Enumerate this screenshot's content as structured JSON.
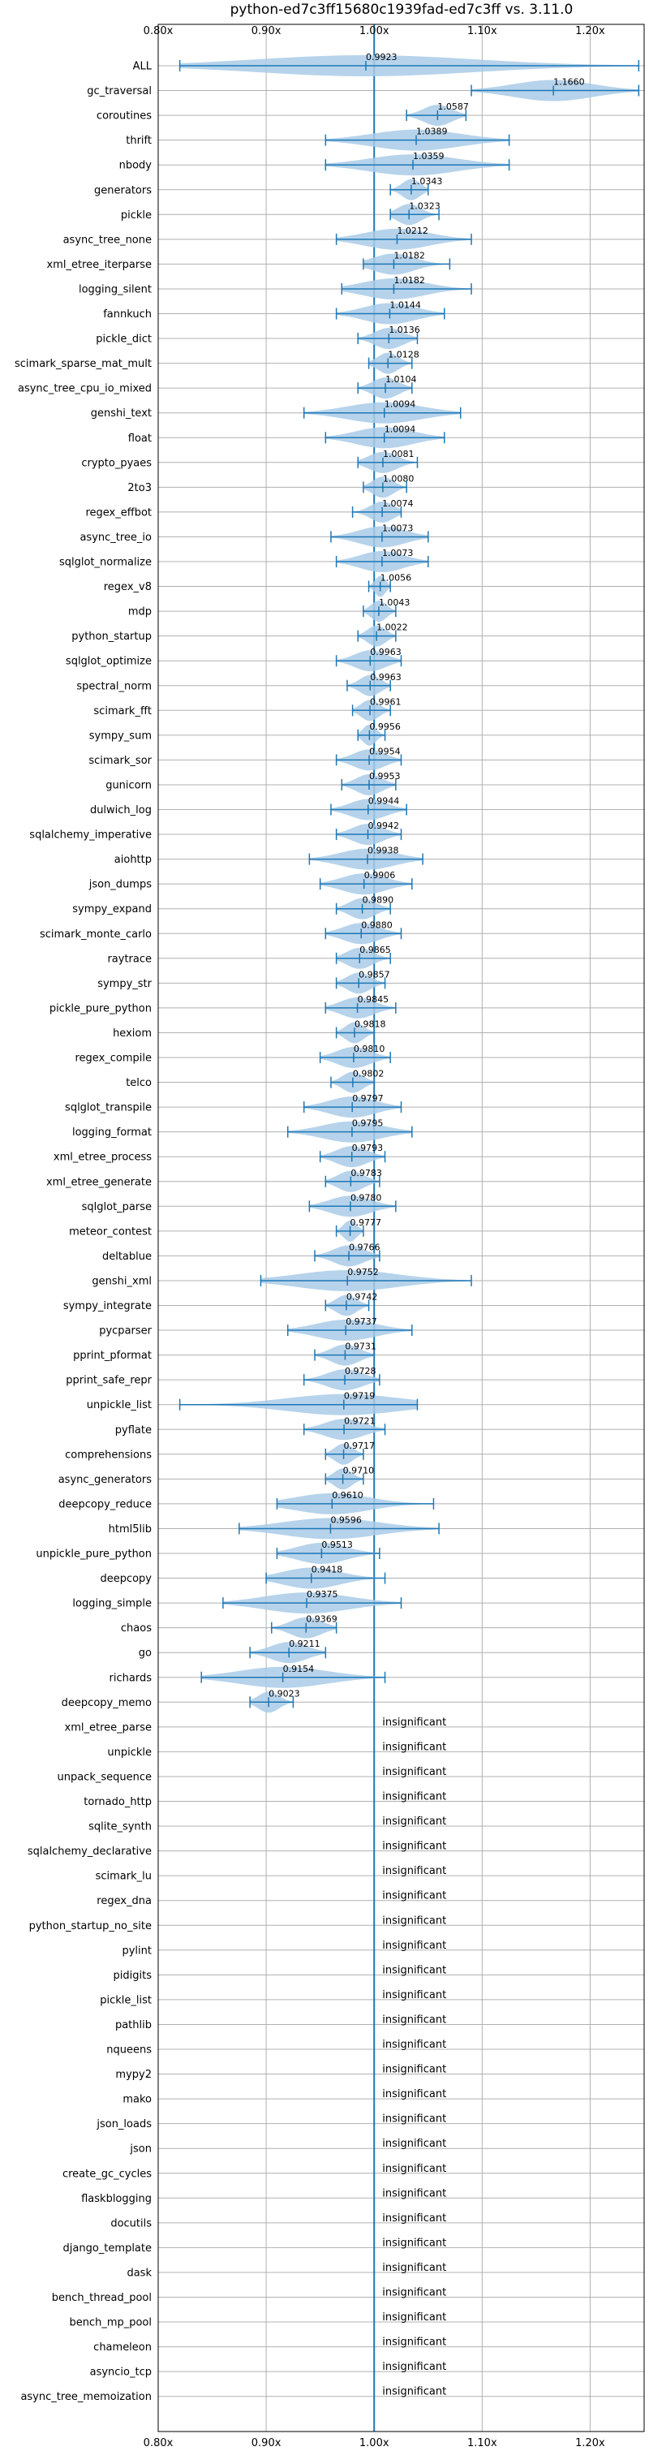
{
  "chart_data": {
    "type": "violin",
    "title": "python-ed7c3ff15680c1939fad-ed7c3ff vs. 3.11.0",
    "xlim": [
      0.8,
      1.25
    ],
    "x_ticks": [
      {
        "value": 0.8,
        "label": "0.80x"
      },
      {
        "value": 0.9,
        "label": "0.90x"
      },
      {
        "value": 1.0,
        "label": "1.00x"
      },
      {
        "value": 1.1,
        "label": "1.10x"
      },
      {
        "value": 1.2,
        "label": "1.20x"
      }
    ],
    "reference_line": 1.0,
    "grid": true,
    "insignificant_text": "insignificant",
    "colors": {
      "violin": "#a9cbe8",
      "line": "#1f77b4",
      "grid": "#b0b0b0"
    },
    "benchmarks": [
      {
        "name": "ALL",
        "value": 0.9923,
        "label": "0.9923",
        "min": 0.82,
        "max": 1.245
      },
      {
        "name": "gc_traversal",
        "value": 1.166,
        "label": "1.1660",
        "min": 1.09,
        "max": 1.245
      },
      {
        "name": "coroutines",
        "value": 1.0587,
        "label": "1.0587",
        "min": 1.03,
        "max": 1.085
      },
      {
        "name": "thrift",
        "value": 1.0389,
        "label": "1.0389",
        "min": 0.955,
        "max": 1.125
      },
      {
        "name": "nbody",
        "value": 1.0359,
        "label": "1.0359",
        "min": 0.955,
        "max": 1.125
      },
      {
        "name": "generators",
        "value": 1.0343,
        "label": "1.0343",
        "min": 1.015,
        "max": 1.05
      },
      {
        "name": "pickle",
        "value": 1.0323,
        "label": "1.0323",
        "min": 1.015,
        "max": 1.06
      },
      {
        "name": "async_tree_none",
        "value": 1.0212,
        "label": "1.0212",
        "min": 0.965,
        "max": 1.09
      },
      {
        "name": "xml_etree_iterparse",
        "value": 1.0182,
        "label": "1.0182",
        "min": 0.99,
        "max": 1.07
      },
      {
        "name": "logging_silent",
        "value": 1.0182,
        "label": "1.0182",
        "min": 0.97,
        "max": 1.09
      },
      {
        "name": "fannkuch",
        "value": 1.0144,
        "label": "1.0144",
        "min": 0.965,
        "max": 1.065
      },
      {
        "name": "pickle_dict",
        "value": 1.0136,
        "label": "1.0136",
        "min": 0.985,
        "max": 1.04
      },
      {
        "name": "scimark_sparse_mat_mult",
        "value": 1.0128,
        "label": "1.0128",
        "min": 0.995,
        "max": 1.035
      },
      {
        "name": "async_tree_cpu_io_mixed",
        "value": 1.0104,
        "label": "1.0104",
        "min": 0.985,
        "max": 1.035
      },
      {
        "name": "genshi_text",
        "value": 1.0094,
        "label": "1.0094",
        "min": 0.935,
        "max": 1.08
      },
      {
        "name": "float",
        "value": 1.0094,
        "label": "1.0094",
        "min": 0.955,
        "max": 1.065
      },
      {
        "name": "crypto_pyaes",
        "value": 1.0081,
        "label": "1.0081",
        "min": 0.985,
        "max": 1.04
      },
      {
        "name": "2to3",
        "value": 1.008,
        "label": "1.0080",
        "min": 0.99,
        "max": 1.03
      },
      {
        "name": "regex_effbot",
        "value": 1.0074,
        "label": "1.0074",
        "min": 0.98,
        "max": 1.025
      },
      {
        "name": "async_tree_io",
        "value": 1.0073,
        "label": "1.0073",
        "min": 0.96,
        "max": 1.05
      },
      {
        "name": "sqlglot_normalize",
        "value": 1.0073,
        "label": "1.0073",
        "min": 0.965,
        "max": 1.05
      },
      {
        "name": "regex_v8",
        "value": 1.0056,
        "label": "1.0056",
        "min": 0.995,
        "max": 1.015
      },
      {
        "name": "mdp",
        "value": 1.0043,
        "label": "1.0043",
        "min": 0.99,
        "max": 1.02
      },
      {
        "name": "python_startup",
        "value": 1.0022,
        "label": "1.0022",
        "min": 0.985,
        "max": 1.02
      },
      {
        "name": "sqlglot_optimize",
        "value": 0.9963,
        "label": "0.9963",
        "min": 0.965,
        "max": 1.025
      },
      {
        "name": "spectral_norm",
        "value": 0.9963,
        "label": "0.9963",
        "min": 0.975,
        "max": 1.015
      },
      {
        "name": "scimark_fft",
        "value": 0.9961,
        "label": "0.9961",
        "min": 0.98,
        "max": 1.015
      },
      {
        "name": "sympy_sum",
        "value": 0.9956,
        "label": "0.9956",
        "min": 0.985,
        "max": 1.01
      },
      {
        "name": "scimark_sor",
        "value": 0.9954,
        "label": "0.9954",
        "min": 0.965,
        "max": 1.025
      },
      {
        "name": "gunicorn",
        "value": 0.9953,
        "label": "0.9953",
        "min": 0.97,
        "max": 1.02
      },
      {
        "name": "dulwich_log",
        "value": 0.9944,
        "label": "0.9944",
        "min": 0.96,
        "max": 1.03
      },
      {
        "name": "sqlalchemy_imperative",
        "value": 0.9942,
        "label": "0.9942",
        "min": 0.965,
        "max": 1.025
      },
      {
        "name": "aiohttp",
        "value": 0.9938,
        "label": "0.9938",
        "min": 0.94,
        "max": 1.045
      },
      {
        "name": "json_dumps",
        "value": 0.9906,
        "label": "0.9906",
        "min": 0.95,
        "max": 1.035
      },
      {
        "name": "sympy_expand",
        "value": 0.989,
        "label": "0.9890",
        "min": 0.965,
        "max": 1.015
      },
      {
        "name": "scimark_monte_carlo",
        "value": 0.988,
        "label": "0.9880",
        "min": 0.955,
        "max": 1.025
      },
      {
        "name": "raytrace",
        "value": 0.9865,
        "label": "0.9865",
        "min": 0.965,
        "max": 1.015
      },
      {
        "name": "sympy_str",
        "value": 0.9857,
        "label": "0.9857",
        "min": 0.965,
        "max": 1.01
      },
      {
        "name": "pickle_pure_python",
        "value": 0.9845,
        "label": "0.9845",
        "min": 0.955,
        "max": 1.02
      },
      {
        "name": "hexiom",
        "value": 0.9818,
        "label": "0.9818",
        "min": 0.965,
        "max": 1.0
      },
      {
        "name": "regex_compile",
        "value": 0.981,
        "label": "0.9810",
        "min": 0.95,
        "max": 1.015
      },
      {
        "name": "telco",
        "value": 0.9802,
        "label": "0.9802",
        "min": 0.96,
        "max": 1.0
      },
      {
        "name": "sqlglot_transpile",
        "value": 0.9797,
        "label": "0.9797",
        "min": 0.935,
        "max": 1.025
      },
      {
        "name": "logging_format",
        "value": 0.9795,
        "label": "0.9795",
        "min": 0.92,
        "max": 1.035
      },
      {
        "name": "xml_etree_process",
        "value": 0.9793,
        "label": "0.9793",
        "min": 0.95,
        "max": 1.01
      },
      {
        "name": "xml_etree_generate",
        "value": 0.9783,
        "label": "0.9783",
        "min": 0.955,
        "max": 1.005
      },
      {
        "name": "sqlglot_parse",
        "value": 0.978,
        "label": "0.9780",
        "min": 0.94,
        "max": 1.02
      },
      {
        "name": "meteor_contest",
        "value": 0.9777,
        "label": "0.9777",
        "min": 0.965,
        "max": 0.99
      },
      {
        "name": "deltablue",
        "value": 0.9766,
        "label": "0.9766",
        "min": 0.945,
        "max": 1.005
      },
      {
        "name": "genshi_xml",
        "value": 0.9752,
        "label": "0.9752",
        "min": 0.895,
        "max": 1.09
      },
      {
        "name": "sympy_integrate",
        "value": 0.9742,
        "label": "0.9742",
        "min": 0.955,
        "max": 0.995
      },
      {
        "name": "pycparser",
        "value": 0.9737,
        "label": "0.9737",
        "min": 0.92,
        "max": 1.035
      },
      {
        "name": "pprint_pformat",
        "value": 0.9731,
        "label": "0.9731",
        "min": 0.945,
        "max": 1.0
      },
      {
        "name": "pprint_safe_repr",
        "value": 0.9728,
        "label": "0.9728",
        "min": 0.935,
        "max": 1.005
      },
      {
        "name": "unpickle_list",
        "value": 0.9719,
        "label": "0.9719",
        "min": 0.82,
        "max": 1.04
      },
      {
        "name": "pyflate",
        "value": 0.9721,
        "label": "0.9721",
        "min": 0.935,
        "max": 1.01
      },
      {
        "name": "comprehensions",
        "value": 0.9717,
        "label": "0.9717",
        "min": 0.955,
        "max": 0.99
      },
      {
        "name": "async_generators",
        "value": 0.971,
        "label": "0.9710",
        "min": 0.955,
        "max": 0.99
      },
      {
        "name": "deepcopy_reduce",
        "value": 0.961,
        "label": "0.9610",
        "min": 0.91,
        "max": 1.055
      },
      {
        "name": "html5lib",
        "value": 0.9596,
        "label": "0.9596",
        "min": 0.875,
        "max": 1.06
      },
      {
        "name": "unpickle_pure_python",
        "value": 0.9513,
        "label": "0.9513",
        "min": 0.91,
        "max": 1.005
      },
      {
        "name": "deepcopy",
        "value": 0.9418,
        "label": "0.9418",
        "min": 0.9,
        "max": 1.01
      },
      {
        "name": "logging_simple",
        "value": 0.9375,
        "label": "0.9375",
        "min": 0.86,
        "max": 1.025
      },
      {
        "name": "chaos",
        "value": 0.9369,
        "label": "0.9369",
        "min": 0.905,
        "max": 0.965
      },
      {
        "name": "go",
        "value": 0.9211,
        "label": "0.9211",
        "min": 0.885,
        "max": 0.955
      },
      {
        "name": "richards",
        "value": 0.9154,
        "label": "0.9154",
        "min": 0.84,
        "max": 1.01
      },
      {
        "name": "deepcopy_memo",
        "value": 0.9023,
        "label": "0.9023",
        "min": 0.885,
        "max": 0.925
      },
      {
        "name": "xml_etree_parse",
        "insignificant": true
      },
      {
        "name": "unpickle",
        "insignificant": true
      },
      {
        "name": "unpack_sequence",
        "insignificant": true
      },
      {
        "name": "tornado_http",
        "insignificant": true
      },
      {
        "name": "sqlite_synth",
        "insignificant": true
      },
      {
        "name": "sqlalchemy_declarative",
        "insignificant": true
      },
      {
        "name": "scimark_lu",
        "insignificant": true
      },
      {
        "name": "regex_dna",
        "insignificant": true
      },
      {
        "name": "python_startup_no_site",
        "insignificant": true
      },
      {
        "name": "pylint",
        "insignificant": true
      },
      {
        "name": "pidigits",
        "insignificant": true
      },
      {
        "name": "pickle_list",
        "insignificant": true
      },
      {
        "name": "pathlib",
        "insignificant": true
      },
      {
        "name": "nqueens",
        "insignificant": true
      },
      {
        "name": "mypy2",
        "insignificant": true
      },
      {
        "name": "mako",
        "insignificant": true
      },
      {
        "name": "json_loads",
        "insignificant": true
      },
      {
        "name": "json",
        "insignificant": true
      },
      {
        "name": "create_gc_cycles",
        "insignificant": true
      },
      {
        "name": "flaskblogging",
        "insignificant": true
      },
      {
        "name": "docutils",
        "insignificant": true
      },
      {
        "name": "django_template",
        "insignificant": true
      },
      {
        "name": "dask",
        "insignificant": true
      },
      {
        "name": "bench_thread_pool",
        "insignificant": true
      },
      {
        "name": "bench_mp_pool",
        "insignificant": true
      },
      {
        "name": "chameleon",
        "insignificant": true
      },
      {
        "name": "asyncio_tcp",
        "insignificant": true
      },
      {
        "name": "async_tree_memoization",
        "insignificant": true
      }
    ]
  }
}
